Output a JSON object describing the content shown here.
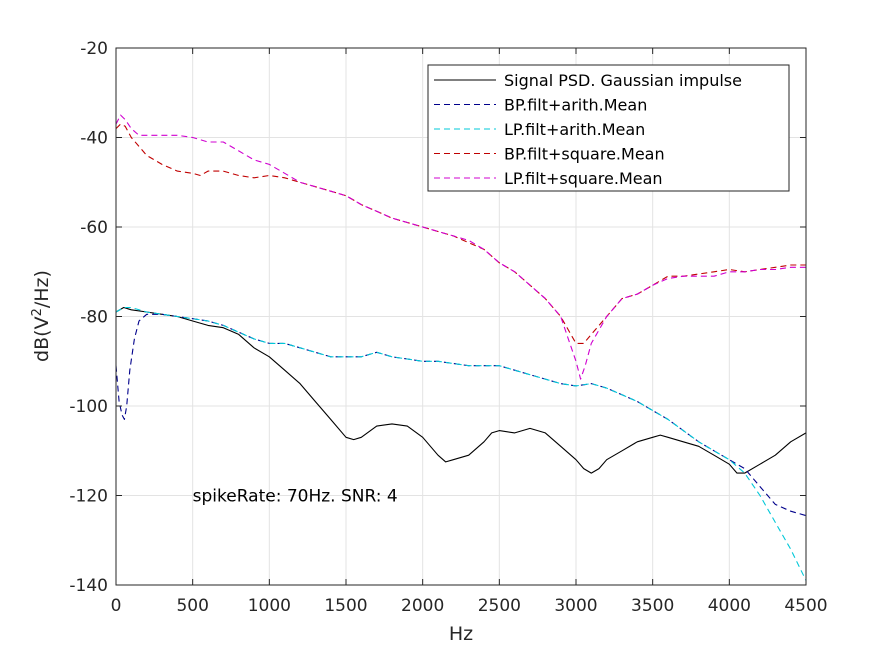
{
  "chart_data": {
    "type": "line",
    "xlabel": "Hz",
    "ylabel": "dB(V",
    "ylabel_sup": "2",
    "ylabel_tail": "/Hz)",
    "xlim": [
      0,
      4500
    ],
    "ylim": [
      -140,
      -20
    ],
    "xticks": [
      0,
      500,
      1000,
      1500,
      2000,
      2500,
      3000,
      3500,
      4000,
      4500
    ],
    "yticks": [
      -140,
      -120,
      -100,
      -80,
      -60,
      -40,
      -20
    ],
    "grid": true,
    "legend_position": "top-right",
    "annotation": {
      "text": "spikeRate: 70Hz. SNR: 4",
      "x": 500,
      "y": -120
    },
    "series": [
      {
        "name": "Signal PSD. Gaussian impulse",
        "color": "#000000",
        "dash": "solid",
        "points": [
          [
            0,
            -79
          ],
          [
            50,
            -78
          ],
          [
            100,
            -78.5
          ],
          [
            200,
            -79
          ],
          [
            300,
            -79.5
          ],
          [
            400,
            -80
          ],
          [
            500,
            -81
          ],
          [
            600,
            -82
          ],
          [
            700,
            -82.5
          ],
          [
            800,
            -84
          ],
          [
            900,
            -87
          ],
          [
            1000,
            -89
          ],
          [
            1100,
            -92
          ],
          [
            1200,
            -95
          ],
          [
            1300,
            -99
          ],
          [
            1400,
            -103
          ],
          [
            1500,
            -107
          ],
          [
            1550,
            -107.5
          ],
          [
            1600,
            -107
          ],
          [
            1700,
            -104.5
          ],
          [
            1800,
            -104
          ],
          [
            1900,
            -104.5
          ],
          [
            2000,
            -107
          ],
          [
            2100,
            -111
          ],
          [
            2150,
            -112.5
          ],
          [
            2200,
            -112
          ],
          [
            2300,
            -111
          ],
          [
            2400,
            -108
          ],
          [
            2450,
            -106
          ],
          [
            2500,
            -105.5
          ],
          [
            2600,
            -106
          ],
          [
            2700,
            -105
          ],
          [
            2800,
            -106
          ],
          [
            2900,
            -109
          ],
          [
            3000,
            -112
          ],
          [
            3050,
            -114
          ],
          [
            3100,
            -115
          ],
          [
            3150,
            -114
          ],
          [
            3200,
            -112
          ],
          [
            3300,
            -110
          ],
          [
            3400,
            -108
          ],
          [
            3500,
            -107
          ],
          [
            3550,
            -106.5
          ],
          [
            3600,
            -107
          ],
          [
            3700,
            -108
          ],
          [
            3800,
            -109
          ],
          [
            3900,
            -111
          ],
          [
            4000,
            -113
          ],
          [
            4050,
            -115
          ],
          [
            4100,
            -115
          ],
          [
            4200,
            -113
          ],
          [
            4300,
            -111
          ],
          [
            4400,
            -108
          ],
          [
            4500,
            -106
          ]
        ]
      },
      {
        "name": "BP.filt+arith.Mean",
        "color": "#00008b",
        "dash": "dashed",
        "points": [
          [
            0,
            -91
          ],
          [
            20,
            -99
          ],
          [
            40,
            -102
          ],
          [
            55,
            -103
          ],
          [
            70,
            -100
          ],
          [
            90,
            -92
          ],
          [
            120,
            -85
          ],
          [
            150,
            -81
          ],
          [
            200,
            -79.5
          ],
          [
            300,
            -79.5
          ],
          [
            400,
            -80
          ],
          [
            500,
            -80.5
          ],
          [
            600,
            -81
          ],
          [
            700,
            -82
          ],
          [
            800,
            -83.5
          ],
          [
            900,
            -85
          ],
          [
            1000,
            -86
          ],
          [
            1100,
            -86
          ],
          [
            1200,
            -87
          ],
          [
            1300,
            -88
          ],
          [
            1400,
            -89
          ],
          [
            1500,
            -89
          ],
          [
            1600,
            -89
          ],
          [
            1700,
            -88
          ],
          [
            1800,
            -89
          ],
          [
            1900,
            -89.5
          ],
          [
            2000,
            -90
          ],
          [
            2100,
            -90
          ],
          [
            2200,
            -90.5
          ],
          [
            2300,
            -91
          ],
          [
            2400,
            -91
          ],
          [
            2500,
            -91
          ],
          [
            2600,
            -92
          ],
          [
            2700,
            -93
          ],
          [
            2800,
            -94
          ],
          [
            2900,
            -95
          ],
          [
            3000,
            -95.5
          ],
          [
            3100,
            -95
          ],
          [
            3200,
            -96
          ],
          [
            3300,
            -97.5
          ],
          [
            3400,
            -99
          ],
          [
            3500,
            -101
          ],
          [
            3600,
            -103
          ],
          [
            3700,
            -105.5
          ],
          [
            3800,
            -108
          ],
          [
            3900,
            -110
          ],
          [
            4000,
            -112
          ],
          [
            4100,
            -114
          ],
          [
            4200,
            -118
          ],
          [
            4300,
            -122
          ],
          [
            4400,
            -123.5
          ],
          [
            4500,
            -124.5
          ]
        ]
      },
      {
        "name": "LP.filt+arith.Mean",
        "color": "#00c8d8",
        "dash": "dashed",
        "points": [
          [
            0,
            -79
          ],
          [
            50,
            -78
          ],
          [
            100,
            -78
          ],
          [
            200,
            -79
          ],
          [
            300,
            -79.5
          ],
          [
            400,
            -80
          ],
          [
            500,
            -80.5
          ],
          [
            600,
            -81
          ],
          [
            700,
            -82
          ],
          [
            800,
            -83.5
          ],
          [
            900,
            -85
          ],
          [
            1000,
            -86
          ],
          [
            1100,
            -86
          ],
          [
            1200,
            -87
          ],
          [
            1300,
            -88
          ],
          [
            1400,
            -89
          ],
          [
            1500,
            -89
          ],
          [
            1600,
            -89
          ],
          [
            1700,
            -88
          ],
          [
            1800,
            -89
          ],
          [
            1900,
            -89.5
          ],
          [
            2000,
            -90
          ],
          [
            2100,
            -90
          ],
          [
            2200,
            -90.5
          ],
          [
            2300,
            -91
          ],
          [
            2400,
            -91
          ],
          [
            2500,
            -91
          ],
          [
            2600,
            -92
          ],
          [
            2700,
            -93
          ],
          [
            2800,
            -94
          ],
          [
            2900,
            -95
          ],
          [
            3000,
            -95.5
          ],
          [
            3100,
            -95
          ],
          [
            3200,
            -96
          ],
          [
            3300,
            -97.5
          ],
          [
            3400,
            -99
          ],
          [
            3500,
            -101
          ],
          [
            3600,
            -103
          ],
          [
            3700,
            -105.5
          ],
          [
            3800,
            -108
          ],
          [
            3900,
            -110
          ],
          [
            4000,
            -112
          ],
          [
            4100,
            -115
          ],
          [
            4200,
            -120
          ],
          [
            4300,
            -126
          ],
          [
            4400,
            -132
          ],
          [
            4500,
            -139
          ]
        ]
      },
      {
        "name": "BP.filt+square.Mean",
        "color": "#c00000",
        "dash": "dashed",
        "points": [
          [
            0,
            -38
          ],
          [
            30,
            -37
          ],
          [
            60,
            -37.5
          ],
          [
            100,
            -40
          ],
          [
            150,
            -42
          ],
          [
            200,
            -44
          ],
          [
            300,
            -46
          ],
          [
            400,
            -47.5
          ],
          [
            500,
            -48
          ],
          [
            550,
            -48.5
          ],
          [
            600,
            -47.5
          ],
          [
            700,
            -47.5
          ],
          [
            800,
            -48.5
          ],
          [
            900,
            -49
          ],
          [
            1000,
            -48.5
          ],
          [
            1100,
            -49
          ],
          [
            1200,
            -50
          ],
          [
            1300,
            -51
          ],
          [
            1400,
            -52
          ],
          [
            1500,
            -53
          ],
          [
            1600,
            -55
          ],
          [
            1700,
            -56.5
          ],
          [
            1800,
            -58
          ],
          [
            1900,
            -59
          ],
          [
            2000,
            -60
          ],
          [
            2100,
            -61
          ],
          [
            2200,
            -62
          ],
          [
            2300,
            -63.5
          ],
          [
            2400,
            -65
          ],
          [
            2500,
            -68
          ],
          [
            2600,
            -70
          ],
          [
            2700,
            -73
          ],
          [
            2800,
            -76
          ],
          [
            2900,
            -80
          ],
          [
            2950,
            -83
          ],
          [
            3000,
            -86
          ],
          [
            3050,
            -86
          ],
          [
            3100,
            -84
          ],
          [
            3200,
            -80
          ],
          [
            3300,
            -76
          ],
          [
            3400,
            -75
          ],
          [
            3500,
            -73
          ],
          [
            3600,
            -71
          ],
          [
            3700,
            -71
          ],
          [
            3800,
            -70.5
          ],
          [
            3900,
            -70
          ],
          [
            4000,
            -69.5
          ],
          [
            4100,
            -70
          ],
          [
            4200,
            -69.5
          ],
          [
            4300,
            -69
          ],
          [
            4400,
            -68.5
          ],
          [
            4500,
            -68.5
          ]
        ]
      },
      {
        "name": "LP.filt+square.Mean",
        "color": "#d000d0",
        "dash": "dashed",
        "points": [
          [
            0,
            -37
          ],
          [
            30,
            -35
          ],
          [
            60,
            -36
          ],
          [
            100,
            -38
          ],
          [
            150,
            -39.5
          ],
          [
            200,
            -39.5
          ],
          [
            300,
            -39.5
          ],
          [
            400,
            -39.5
          ],
          [
            500,
            -40
          ],
          [
            600,
            -41
          ],
          [
            700,
            -41
          ],
          [
            800,
            -43
          ],
          [
            900,
            -45
          ],
          [
            1000,
            -46
          ],
          [
            1100,
            -48
          ],
          [
            1200,
            -50
          ],
          [
            1300,
            -51
          ],
          [
            1400,
            -52
          ],
          [
            1500,
            -53
          ],
          [
            1600,
            -55
          ],
          [
            1700,
            -56.5
          ],
          [
            1800,
            -58
          ],
          [
            1900,
            -59
          ],
          [
            2000,
            -60
          ],
          [
            2100,
            -61
          ],
          [
            2200,
            -62
          ],
          [
            2300,
            -63
          ],
          [
            2400,
            -65
          ],
          [
            2500,
            -68
          ],
          [
            2600,
            -70
          ],
          [
            2700,
            -73
          ],
          [
            2800,
            -76
          ],
          [
            2900,
            -80
          ],
          [
            2950,
            -85
          ],
          [
            3000,
            -90
          ],
          [
            3030,
            -94
          ],
          [
            3060,
            -91
          ],
          [
            3100,
            -86
          ],
          [
            3200,
            -80
          ],
          [
            3300,
            -76
          ],
          [
            3400,
            -75
          ],
          [
            3500,
            -73
          ],
          [
            3600,
            -71.5
          ],
          [
            3700,
            -71
          ],
          [
            3800,
            -71
          ],
          [
            3900,
            -71
          ],
          [
            4000,
            -70
          ],
          [
            4100,
            -70
          ],
          [
            4200,
            -69.5
          ],
          [
            4300,
            -69.5
          ],
          [
            4400,
            -69
          ],
          [
            4500,
            -69
          ]
        ]
      }
    ]
  }
}
